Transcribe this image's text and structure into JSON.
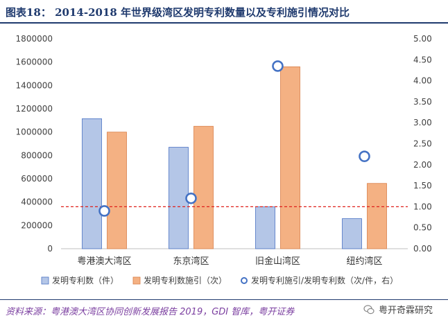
{
  "header": {
    "title": "图表18： 2014-2018 年世界级湾区发明专利数量以及专利施引情况对比"
  },
  "footer": {
    "source": "资料来源：粤港澳大湾区协同创新发展报告 2019，GDI 智库，粤开证券",
    "brand": "粤开奇霖研究"
  },
  "chart_data": {
    "type": "bar",
    "categories": [
      "粤港澳大湾区",
      "东京湾区",
      "旧金山湾区",
      "纽约湾区"
    ],
    "series": [
      {
        "name": "发明专利数（件）",
        "type": "bar",
        "axis": "left",
        "color": "#b4c6e7",
        "stroke": "#4a72c4",
        "values": [
          1115000,
          870000,
          360000,
          258000
        ]
      },
      {
        "name": "发明专利数施引（次）",
        "type": "bar",
        "axis": "left",
        "color": "#f4b183",
        "stroke": "#d9804a",
        "values": [
          1000000,
          1050000,
          1560000,
          560000
        ]
      },
      {
        "name": "发明专利施引/发明专利数（次/件，右）",
        "type": "scatter",
        "axis": "right",
        "color": "#4472c4",
        "values": [
          0.9,
          1.2,
          4.35,
          2.2
        ]
      }
    ],
    "y_left": {
      "min": 0,
      "max": 1800000,
      "ticks": [
        "0",
        "200000",
        "400000",
        "600000",
        "800000",
        "1000000",
        "1200000",
        "1400000",
        "1600000",
        "1800000"
      ]
    },
    "y_right": {
      "min": 0,
      "max": 5,
      "ticks": [
        "0.00",
        "0.50",
        "1.00",
        "1.50",
        "2.00",
        "2.50",
        "3.00",
        "3.50",
        "4.00",
        "4.50",
        "5.00"
      ]
    },
    "reference_line": {
      "axis": "right",
      "value": 1.0,
      "color": "#e0201b"
    },
    "legend_position": "bottom",
    "grid": false
  }
}
